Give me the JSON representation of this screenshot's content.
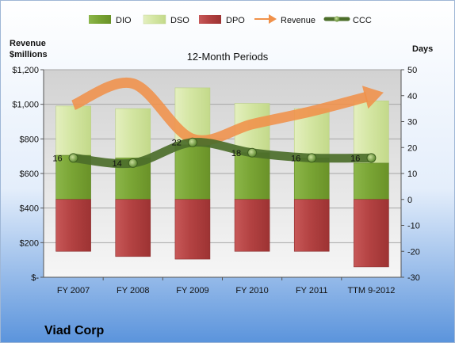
{
  "chart_data": {
    "type": "bar",
    "title": "12-Month Periods",
    "company": "Viad Corp",
    "y_left_title": [
      "Revenue",
      "$millions"
    ],
    "y_right_title": "Days",
    "categories": [
      "FY 2007",
      "FY 2008",
      "FY 2009",
      "FY 2010",
      "FY 2011",
      "TTM 9-2012"
    ],
    "y_left_range": [
      0,
      1200
    ],
    "y_left_ticks": [
      "$-",
      "$200",
      "$400",
      "$600",
      "$800",
      "$1,000",
      "$1,200"
    ],
    "y_right_range": [
      -30,
      50
    ],
    "y_right_ticks": [
      "-30",
      "-20",
      "-10",
      "0",
      "10",
      "20",
      "30",
      "40",
      "50"
    ],
    "legend_position": "top",
    "series": [
      {
        "name": "DIO",
        "axis": "right",
        "kind": "stacked-bar",
        "color": "#7fa83c",
        "values": [
          17,
          16,
          21,
          18,
          16,
          14
        ]
      },
      {
        "name": "DSO",
        "axis": "right",
        "kind": "stacked-bar",
        "color": "#d7e7a9",
        "values": [
          19,
          19,
          22,
          19,
          19,
          24
        ]
      },
      {
        "name": "DPO",
        "axis": "right",
        "kind": "negative-bar",
        "color": "#b84444",
        "values": [
          -20,
          -22,
          -23,
          -20,
          -20,
          -26
        ]
      },
      {
        "name": "Revenue",
        "axis": "left",
        "kind": "arrow",
        "color": "#f0914a",
        "values": [
          995,
          1120,
          800,
          885,
          960,
          1050
        ]
      },
      {
        "name": "CCC",
        "axis": "right",
        "kind": "line",
        "color": "#4c6e2a",
        "values": [
          16,
          14,
          22,
          18,
          16,
          16
        ]
      }
    ],
    "ccc_labels": [
      "16",
      "14",
      "22",
      "18",
      "16",
      "16"
    ],
    "grid": true
  }
}
